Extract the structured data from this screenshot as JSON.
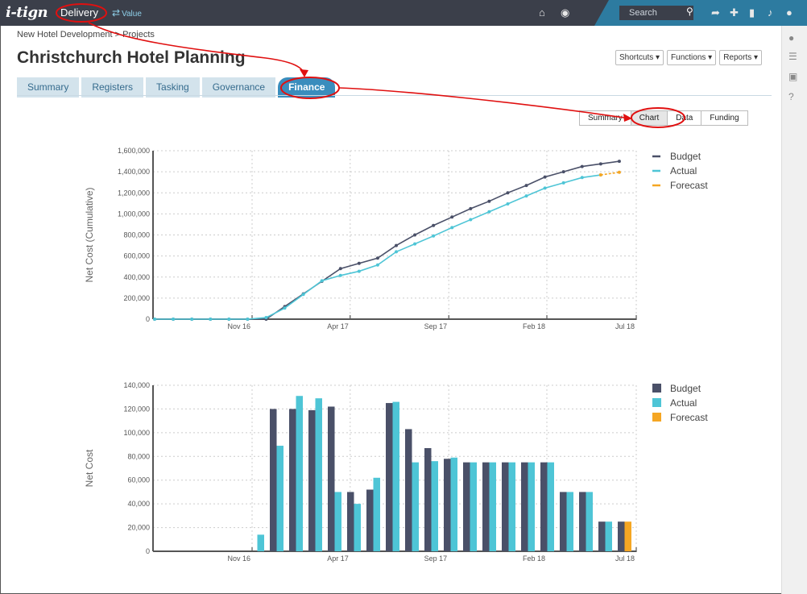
{
  "app": {
    "logo": "i-tign",
    "nav_delivery": "Delivery",
    "nav_value": "Value",
    "search_placeholder": "Search"
  },
  "breadcrumb": "New Hotel Development > Projects",
  "page_title": "Christchurch Hotel Planning",
  "header_buttons": [
    "Shortcuts ▾",
    "Functions ▾",
    "Reports ▾"
  ],
  "tabs": [
    "Summary",
    "Registers",
    "Tasking",
    "Governance",
    "Finance"
  ],
  "active_tab": "Finance",
  "subtabs": [
    "Summary",
    "Chart",
    "Data",
    "Funding"
  ],
  "active_subtab": "Chart",
  "colors": {
    "budget": "#4a5068",
    "actual": "#4ec5d6",
    "forecast": "#f5a623",
    "topbar": "#3b3f4a",
    "accent": "#3a8dbd",
    "annotation": "#e01010"
  },
  "icons": [
    "home-icon",
    "globe-icon",
    "search-icon",
    "share-icon",
    "plus-icon",
    "bookmark-icon",
    "bell-icon",
    "user-icon",
    "comment-icon",
    "list-icon",
    "lock-icon",
    "help-icon"
  ],
  "chart_data": [
    {
      "type": "line",
      "ylabel": "Net Cost (Cumulative)",
      "ylim": [
        0,
        1600000
      ],
      "yticks": [
        "0",
        "200,000",
        "400,000",
        "600,000",
        "800,000",
        "1,000,000",
        "1,200,000",
        "1,400,000",
        "1,600,000"
      ],
      "xticks": [
        "Nov 16",
        "Apr 17",
        "Sep 17",
        "Feb 18",
        "Jul 18"
      ],
      "legend": [
        "Budget",
        "Actual",
        "Forecast"
      ],
      "legend_position": "right",
      "grid": true,
      "series": [
        {
          "name": "Budget",
          "values": [
            0,
            0,
            0,
            0,
            0,
            0,
            0,
            120000,
            240000,
            360000,
            480000,
            530000,
            580000,
            700000,
            800000,
            890000,
            970000,
            1050000,
            1120000,
            1200000,
            1270000,
            1350000,
            1400000,
            1450000,
            1475000,
            1500000
          ]
        },
        {
          "name": "Actual",
          "values": [
            0,
            0,
            0,
            0,
            0,
            0,
            15000,
            105000,
            235000,
            365000,
            415000,
            455000,
            515000,
            640000,
            715000,
            790000,
            870000,
            945000,
            1020000,
            1095000,
            1170000,
            1245000,
            1295000,
            1345000,
            1370000,
            null
          ]
        },
        {
          "name": "Forecast",
          "values": [
            null,
            null,
            null,
            null,
            null,
            null,
            null,
            null,
            null,
            null,
            null,
            null,
            null,
            null,
            null,
            null,
            null,
            null,
            null,
            null,
            null,
            null,
            null,
            null,
            1370000,
            1395000
          ]
        }
      ]
    },
    {
      "type": "bar",
      "ylabel": "Net Cost",
      "ylim": [
        0,
        140000
      ],
      "yticks": [
        "0",
        "20,000",
        "40,000",
        "60,000",
        "80,000",
        "100,000",
        "120,000",
        "140,000"
      ],
      "xticks": [
        "Nov 16",
        "Apr 17",
        "Sep 17",
        "Feb 18",
        "Jul 18"
      ],
      "legend": [
        "Budget",
        "Actual",
        "Forecast"
      ],
      "legend_position": "right",
      "grid": true,
      "series": [
        {
          "name": "Budget",
          "values": [
            0,
            0,
            0,
            0,
            0,
            0,
            120000,
            120000,
            119000,
            122000,
            50000,
            52000,
            125000,
            103000,
            87000,
            78000,
            75000,
            75000,
            75000,
            75000,
            75000,
            50000,
            50000,
            25000,
            25000
          ]
        },
        {
          "name": "Actual",
          "values": [
            0,
            0,
            0,
            0,
            0,
            14000,
            89000,
            131000,
            129000,
            50000,
            40000,
            62000,
            126000,
            75000,
            76000,
            79000,
            75000,
            75000,
            75000,
            75000,
            75000,
            50000,
            50000,
            25000,
            0
          ]
        },
        {
          "name": "Forecast",
          "values": [
            0,
            0,
            0,
            0,
            0,
            0,
            0,
            0,
            0,
            0,
            0,
            0,
            0,
            0,
            0,
            0,
            0,
            0,
            0,
            0,
            0,
            0,
            0,
            0,
            25000
          ]
        }
      ]
    }
  ]
}
